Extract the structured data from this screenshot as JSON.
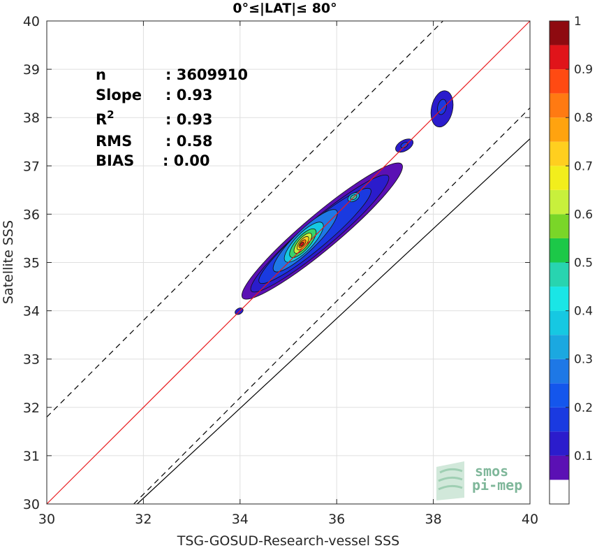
{
  "chart_data": {
    "type": "heatmap",
    "title": "0°≤|LAT|≤ 80°",
    "xlabel": "TSG-GOSUD-Research-vessel SSS",
    "ylabel": "Satellite SSS",
    "xlim": [
      30,
      40
    ],
    "ylim": [
      30,
      40
    ],
    "xticks": [
      "30",
      "32",
      "34",
      "36",
      "38",
      "40"
    ],
    "yticks": [
      "30",
      "31",
      "32",
      "33",
      "34",
      "35",
      "36",
      "37",
      "38",
      "39",
      "40"
    ],
    "grid": true,
    "stats": [
      {
        "label": "n",
        "value": ": 3609910"
      },
      {
        "label": "Slope",
        "value": ": 0.93"
      },
      {
        "label": "R",
        "sup": "2",
        "value": ": 0.93"
      },
      {
        "label": "RMS",
        "value": ": 0.58"
      },
      {
        "label": "BIAS",
        "value": ": 0.00"
      }
    ],
    "lines": {
      "identity": {
        "slope": 1.0,
        "intercept": 0.0,
        "color": "#e8191c"
      },
      "regression": {
        "slope": 0.93,
        "intercept": 0.36,
        "color": "#000000"
      },
      "dashed_upper": {
        "slope": 1.0,
        "intercept": 1.8,
        "color": "#000000"
      },
      "dashed_lower": {
        "slope": 1.0,
        "intercept": -1.8,
        "color": "#000000"
      }
    },
    "density_contours": [
      {
        "level": 0.05,
        "color": "#5b10b4",
        "cx": 35.7,
        "cy": 35.65,
        "a": 2.15,
        "b": 0.36,
        "angle": 40
      },
      {
        "level": 0.1,
        "color": "#2b1ccc",
        "cx": 35.65,
        "cy": 35.6,
        "a": 1.85,
        "b": 0.3,
        "angle": 40
      },
      {
        "level": 0.15,
        "color": "#1a3ae0",
        "cx": 35.55,
        "cy": 35.55,
        "a": 1.5,
        "b": 0.26,
        "angle": 40
      },
      {
        "level": 0.25,
        "color": "#1e78e6",
        "cx": 35.35,
        "cy": 35.45,
        "a": 0.9,
        "b": 0.22,
        "angle": 44
      },
      {
        "level": 0.35,
        "color": "#16c8e2",
        "cx": 35.32,
        "cy": 35.42,
        "a": 0.55,
        "b": 0.18,
        "angle": 46
      },
      {
        "level": 0.5,
        "color": "#38d36b",
        "cx": 35.3,
        "cy": 35.4,
        "a": 0.38,
        "b": 0.14,
        "angle": 48
      },
      {
        "level": 0.6,
        "color": "#c8f03c",
        "cx": 35.3,
        "cy": 35.4,
        "a": 0.26,
        "b": 0.1,
        "angle": 50
      },
      {
        "level": 0.7,
        "color": "#ffcf1f",
        "cx": 35.3,
        "cy": 35.4,
        "a": 0.17,
        "b": 0.07,
        "angle": 50
      },
      {
        "level": 0.8,
        "color": "#ff7a12",
        "cx": 35.29,
        "cy": 35.39,
        "a": 0.1,
        "b": 0.045,
        "angle": 50
      },
      {
        "level": 0.9,
        "color": "#e0141a",
        "cx": 35.28,
        "cy": 35.38,
        "a": 0.05,
        "b": 0.025,
        "angle": 50
      },
      {
        "level": 0.3,
        "color": "#1ba8e0",
        "cx": 36.35,
        "cy": 36.35,
        "a": 0.13,
        "b": 0.08,
        "angle": 30
      },
      {
        "level": 0.4,
        "color": "#28d4b0",
        "cx": 36.35,
        "cy": 36.35,
        "a": 0.07,
        "b": 0.045,
        "angle": 30
      },
      {
        "level": 0.1,
        "color": "#2b1ccc",
        "cx": 38.18,
        "cy": 38.18,
        "a": 0.38,
        "b": 0.22,
        "angle": 78
      },
      {
        "level": 0.15,
        "color": "#1a3ae0",
        "cx": 38.18,
        "cy": 38.22,
        "a": 0.16,
        "b": 0.09,
        "angle": 78
      },
      {
        "level": 0.1,
        "color": "#2b1ccc",
        "cx": 37.4,
        "cy": 37.42,
        "a": 0.2,
        "b": 0.11,
        "angle": 30
      },
      {
        "level": 0.15,
        "color": "#1a3ae0",
        "cx": 37.4,
        "cy": 37.43,
        "a": 0.08,
        "b": 0.05,
        "angle": 30
      },
      {
        "level": 0.1,
        "color": "#2b1ccc",
        "cx": 33.98,
        "cy": 33.99,
        "a": 0.09,
        "b": 0.06,
        "angle": 30
      }
    ],
    "colorbar": {
      "ticks": [
        "0.1",
        "0.2",
        "0.3",
        "0.4",
        "0.5",
        "0.6",
        "0.7",
        "0.8",
        "0.9",
        "1"
      ],
      "bands": [
        {
          "from": 0.0,
          "to": 0.05,
          "color": "#ffffff"
        },
        {
          "from": 0.05,
          "to": 0.1,
          "color": "#5b10b4"
        },
        {
          "from": 0.1,
          "to": 0.15,
          "color": "#2b1ccc"
        },
        {
          "from": 0.15,
          "to": 0.2,
          "color": "#1a3ae0"
        },
        {
          "from": 0.2,
          "to": 0.25,
          "color": "#1456ec"
        },
        {
          "from": 0.25,
          "to": 0.3,
          "color": "#1e78e6"
        },
        {
          "from": 0.3,
          "to": 0.35,
          "color": "#1ba8e0"
        },
        {
          "from": 0.35,
          "to": 0.4,
          "color": "#16c8e2"
        },
        {
          "from": 0.4,
          "to": 0.45,
          "color": "#1ae6e6"
        },
        {
          "from": 0.45,
          "to": 0.5,
          "color": "#28d4b0"
        },
        {
          "from": 0.5,
          "to": 0.55,
          "color": "#1cc848"
        },
        {
          "from": 0.55,
          "to": 0.6,
          "color": "#7ad628"
        },
        {
          "from": 0.6,
          "to": 0.65,
          "color": "#c8f03c"
        },
        {
          "from": 0.65,
          "to": 0.7,
          "color": "#f2ee1c"
        },
        {
          "from": 0.7,
          "to": 0.75,
          "color": "#ffcf1f"
        },
        {
          "from": 0.75,
          "to": 0.8,
          "color": "#ffa30f"
        },
        {
          "from": 0.8,
          "to": 0.85,
          "color": "#ff7a12"
        },
        {
          "from": 0.85,
          "to": 0.9,
          "color": "#ff4a12"
        },
        {
          "from": 0.9,
          "to": 0.95,
          "color": "#e0141a"
        },
        {
          "from": 0.95,
          "to": 1.0,
          "color": "#8e0a10"
        }
      ]
    }
  },
  "logo": {
    "line1": "smos",
    "line2": "pi-mep"
  }
}
